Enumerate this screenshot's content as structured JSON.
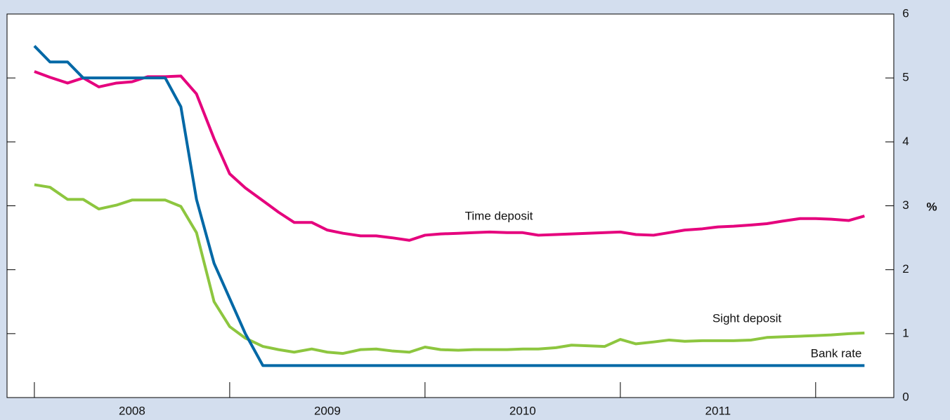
{
  "chart_data": {
    "type": "line",
    "y_axis_label": "%",
    "categories": [
      "2008",
      "2009",
      "2010",
      "2011"
    ],
    "x": [
      2008,
      2008.08,
      2008.17,
      2008.25,
      2008.33,
      2008.42,
      2008.5,
      2008.58,
      2008.67,
      2008.75,
      2008.83,
      2008.92,
      2009,
      2009.08,
      2009.17,
      2009.25,
      2009.33,
      2009.42,
      2009.5,
      2009.58,
      2009.67,
      2009.75,
      2009.83,
      2009.92,
      2010,
      2010.08,
      2010.17,
      2010.25,
      2010.33,
      2010.42,
      2010.5,
      2010.58,
      2010.67,
      2010.75,
      2010.83,
      2010.92,
      2011,
      2011.08,
      2011.17,
      2011.25,
      2011.33,
      2011.42,
      2011.5,
      2011.58,
      2011.67,
      2011.75,
      2011.83,
      2011.92,
      2012,
      2012.08,
      2012.17,
      2012.25
    ],
    "series": [
      {
        "name": "Time deposit",
        "color": "#e5007d",
        "values": [
          5.1,
          5.01,
          4.92,
          5.0,
          4.86,
          4.92,
          4.94,
          5.02,
          5.02,
          5.03,
          4.75,
          4.05,
          3.5,
          3.28,
          3.08,
          2.9,
          2.74,
          2.74,
          2.62,
          2.57,
          2.53,
          2.53,
          2.5,
          2.46,
          2.54,
          2.56,
          2.57,
          2.58,
          2.59,
          2.58,
          2.58,
          2.54,
          2.55,
          2.56,
          2.57,
          2.58,
          2.59,
          2.55,
          2.54,
          2.58,
          2.62,
          2.64,
          2.67,
          2.68,
          2.7,
          2.72,
          2.76,
          2.8,
          2.8,
          2.79,
          2.77,
          2.84
        ]
      },
      {
        "name": "Sight deposit",
        "color": "#8dc63f",
        "values": [
          3.33,
          3.29,
          3.1,
          3.1,
          2.95,
          3.01,
          3.09,
          3.09,
          3.09,
          2.99,
          2.58,
          1.5,
          1.11,
          0.93,
          0.8,
          0.75,
          0.71,
          0.76,
          0.71,
          0.69,
          0.75,
          0.76,
          0.73,
          0.71,
          0.79,
          0.75,
          0.74,
          0.75,
          0.75,
          0.75,
          0.76,
          0.76,
          0.78,
          0.82,
          0.81,
          0.8,
          0.91,
          0.84,
          0.87,
          0.9,
          0.88,
          0.89,
          0.89,
          0.89,
          0.9,
          0.94,
          0.95,
          0.96,
          0.97,
          0.98,
          1.0,
          1.01
        ]
      },
      {
        "name": "Bank rate",
        "color": "#0068a6",
        "values": [
          5.5,
          5.25,
          5.25,
          5.0,
          5.0,
          5.0,
          5.0,
          5.0,
          5.0,
          4.55,
          3.1,
          2.1,
          1.55,
          1.0,
          0.5,
          0.5,
          0.5,
          0.5,
          0.5,
          0.5,
          0.5,
          0.5,
          0.5,
          0.5,
          0.5,
          0.5,
          0.5,
          0.5,
          0.5,
          0.5,
          0.5,
          0.5,
          0.5,
          0.5,
          0.5,
          0.5,
          0.5,
          0.5,
          0.5,
          0.5,
          0.5,
          0.5,
          0.5,
          0.5,
          0.5,
          0.5,
          0.5,
          0.5,
          0.5,
          0.5,
          0.5,
          0.5
        ]
      }
    ],
    "xlim": [
      2007.86,
      2012.4
    ],
    "xticks": [
      2008,
      2009,
      2010,
      2011,
      2012
    ],
    "ylim": [
      0,
      6
    ],
    "yticks": [
      0,
      1,
      2,
      3,
      4,
      5,
      6
    ],
    "grid": false
  }
}
